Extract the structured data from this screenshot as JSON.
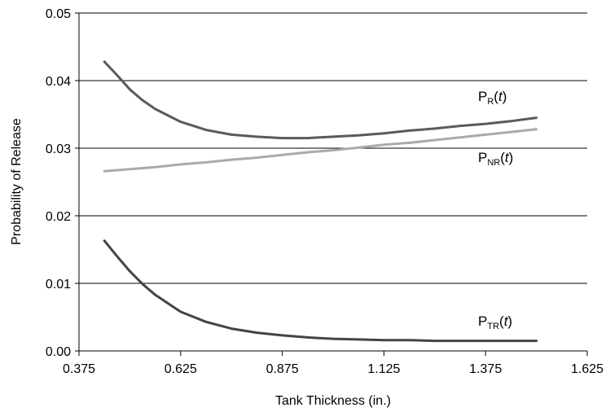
{
  "chart_data": {
    "type": "line",
    "xlabel": "Tank Thickness (in.)",
    "ylabel": "Probability of Release",
    "xlim": [
      0.375,
      1.625
    ],
    "ylim": [
      0,
      0.05
    ],
    "x_ticks": [
      "0.375",
      "0.625",
      "0.875",
      "1.125",
      "1.375",
      "1.625"
    ],
    "y_ticks": [
      "0.00",
      "0.01",
      "0.02",
      "0.03",
      "0.04",
      "0.05"
    ],
    "grid": "horizontal",
    "series": [
      {
        "name_main": "P",
        "name_sub": "R",
        "name_suffix": "(",
        "name_var": "t",
        "name_close": ")",
        "color": "#5a5a5a",
        "x": [
          0.4375,
          0.4688,
          0.5,
          0.5313,
          0.5625,
          0.625,
          0.6875,
          0.75,
          0.8125,
          0.875,
          0.9375,
          1.0,
          1.0625,
          1.125,
          1.1875,
          1.25,
          1.3125,
          1.375,
          1.4375,
          1.5
        ],
        "y": [
          0.0428,
          0.0408,
          0.0387,
          0.0371,
          0.0358,
          0.0339,
          0.0327,
          0.032,
          0.0317,
          0.0315,
          0.0315,
          0.0317,
          0.0319,
          0.0322,
          0.0326,
          0.0329,
          0.0333,
          0.0336,
          0.034,
          0.0345
        ]
      },
      {
        "name_main": "P",
        "name_sub": "NR",
        "name_suffix": "(",
        "name_var": "t",
        "name_close": ")",
        "color": "#aaaaaa",
        "x": [
          0.4375,
          0.5,
          0.5625,
          0.625,
          0.6875,
          0.75,
          0.8125,
          0.875,
          0.9375,
          1.0,
          1.0625,
          1.125,
          1.1875,
          1.25,
          1.3125,
          1.375,
          1.4375,
          1.5
        ],
        "y": [
          0.0266,
          0.0269,
          0.0272,
          0.0276,
          0.0279,
          0.0283,
          0.0286,
          0.029,
          0.0294,
          0.0297,
          0.0301,
          0.0305,
          0.0308,
          0.0312,
          0.0316,
          0.032,
          0.0324,
          0.0328
        ]
      },
      {
        "name_main": "P",
        "name_sub": "TR",
        "name_suffix": "(",
        "name_var": "t",
        "name_close": ")",
        "color": "#444444",
        "x": [
          0.4375,
          0.4688,
          0.5,
          0.5313,
          0.5625,
          0.625,
          0.6875,
          0.75,
          0.8125,
          0.875,
          0.9375,
          1.0,
          1.0625,
          1.125,
          1.1875,
          1.25,
          1.3125,
          1.375,
          1.4375,
          1.5
        ],
        "y": [
          0.0163,
          0.014,
          0.0118,
          0.0099,
          0.0083,
          0.0058,
          0.0043,
          0.0033,
          0.0027,
          0.0023,
          0.002,
          0.0018,
          0.0017,
          0.0016,
          0.0016,
          0.0015,
          0.0015,
          0.0015,
          0.0015,
          0.0015
        ]
      }
    ]
  }
}
